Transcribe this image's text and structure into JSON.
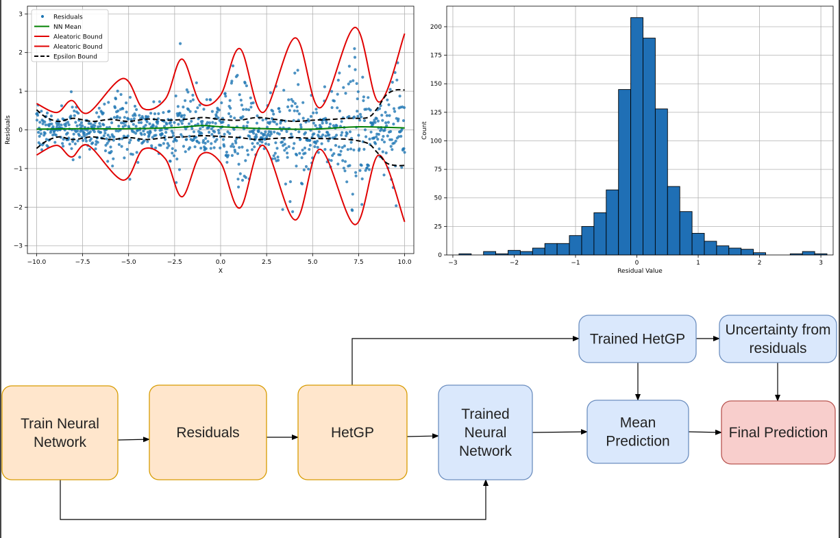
{
  "chart_data": [
    {
      "type": "scatter",
      "xlabel": "X",
      "ylabel": "Residuals",
      "xlim": [
        -10.5,
        10.5
      ],
      "ylim": [
        -3.2,
        3.2
      ],
      "xticks": [
        -10.0,
        -7.5,
        -5.0,
        -2.5,
        0.0,
        2.5,
        5.0,
        7.5,
        10.0
      ],
      "yticks": [
        -3,
        -2,
        -1,
        0,
        1,
        2,
        3
      ],
      "grid": true,
      "legend_position": "top-left",
      "series": [
        {
          "name": "Residuals",
          "kind": "points",
          "color": "#1f77b4",
          "n_points": 1000,
          "x_range": [
            -10,
            10
          ]
        },
        {
          "name": "NN Mean",
          "kind": "line",
          "color": "#008000",
          "x": [
            -10,
            -7.5,
            -5,
            -2.5,
            -1,
            0,
            2.5,
            5,
            7.5,
            10
          ],
          "y": [
            0.02,
            0.03,
            0.03,
            0.06,
            0.11,
            0.08,
            0.03,
            0.02,
            0.08,
            0.05
          ]
        },
        {
          "name": "Aleatoric Bound",
          "kind": "line",
          "color": "#e00000",
          "x": [
            -10.0,
            -8.9,
            -8.1,
            -7.2,
            -5.3,
            -4.2,
            -3.0,
            -2.1,
            -1.1,
            0.0,
            1.05,
            2.3,
            4.05,
            5.4,
            7.3,
            8.6,
            10.0
          ],
          "y": [
            0.68,
            0.45,
            0.76,
            0.44,
            1.33,
            0.55,
            0.8,
            1.83,
            0.7,
            0.9,
            2.1,
            0.45,
            2.38,
            0.57,
            2.65,
            0.72,
            2.49
          ]
        },
        {
          "name": "Aleatoric Bound",
          "kind": "line",
          "color": "#e00000",
          "x": [
            -10.0,
            -8.9,
            -8.1,
            -7.2,
            -5.3,
            -4.2,
            -3.0,
            -2.1,
            -1.1,
            0.0,
            1.05,
            2.3,
            4.05,
            5.4,
            7.3,
            8.6,
            10.0
          ],
          "y": [
            -0.65,
            -0.4,
            -0.7,
            -0.4,
            -1.3,
            -0.5,
            -0.75,
            -1.73,
            -0.65,
            -0.85,
            -2.02,
            -0.4,
            -2.33,
            -0.5,
            -2.45,
            -0.65,
            -2.38
          ]
        },
        {
          "name": "Epsilon Bound",
          "kind": "dashed",
          "color": "#000000",
          "x": [
            -10,
            -9.5,
            -8.8,
            -8,
            -7,
            -6,
            -5,
            -4,
            -3,
            -2,
            -1,
            0,
            1,
            2,
            3,
            4,
            5,
            6,
            7,
            8,
            8.5,
            9,
            9.5,
            10
          ],
          "y": [
            0.52,
            0.33,
            0.22,
            0.3,
            0.22,
            0.27,
            0.22,
            0.28,
            0.25,
            0.27,
            0.32,
            0.27,
            0.25,
            0.32,
            0.27,
            0.22,
            0.25,
            0.27,
            0.3,
            0.32,
            0.55,
            0.9,
            1.03,
            1.03
          ]
        },
        {
          "name": "",
          "kind": "dashed",
          "color": "#000000",
          "x": [
            -10,
            -9.5,
            -8.8,
            -8,
            -7,
            -6,
            -5,
            -4,
            -3,
            -2,
            -1,
            0,
            1,
            2,
            3,
            4,
            5,
            6,
            7,
            8,
            8.5,
            9,
            9.5,
            10
          ],
          "y": [
            -0.48,
            -0.3,
            -0.18,
            -0.25,
            -0.18,
            -0.25,
            -0.2,
            -0.25,
            -0.2,
            -0.18,
            -0.15,
            -0.17,
            -0.2,
            -0.25,
            -0.22,
            -0.2,
            -0.22,
            -0.23,
            -0.25,
            -0.35,
            -0.58,
            -0.85,
            -0.92,
            -0.92
          ]
        }
      ]
    },
    {
      "type": "bar",
      "kind": "histogram",
      "xlabel": "Residual Value",
      "ylabel": "Count",
      "xlim": [
        -3.1,
        3.2
      ],
      "ylim": [
        0,
        218
      ],
      "xticks": [
        -3,
        -2,
        -1,
        0,
        1,
        2,
        3
      ],
      "yticks": [
        0,
        25,
        50,
        75,
        100,
        125,
        150,
        175,
        200
      ],
      "grid": true,
      "color": "#1f6fb5",
      "bin_width": 0.2,
      "bin_starts": [
        -2.9,
        -2.7,
        -2.5,
        -2.3,
        -2.1,
        -1.9,
        -1.7,
        -1.5,
        -1.3,
        -1.1,
        -0.9,
        -0.7,
        -0.5,
        -0.3,
        -0.1,
        0.1,
        0.3,
        0.5,
        0.7,
        0.9,
        1.1,
        1.3,
        1.5,
        1.7,
        1.9,
        2.1,
        2.3,
        2.5,
        2.7,
        2.9
      ],
      "values": [
        1,
        0,
        3,
        1,
        4,
        3,
        6,
        10,
        10,
        17,
        25,
        37,
        57,
        145,
        208,
        190,
        128,
        60,
        38,
        19,
        12,
        8,
        6,
        5,
        2,
        0,
        0,
        1,
        3,
        1
      ]
    }
  ],
  "diagram": {
    "nodes": [
      {
        "id": "train",
        "label_lines": [
          "Train Neural",
          "Network"
        ],
        "fill": "#ffe6cc",
        "stroke": "#d79b00"
      },
      {
        "id": "residuals",
        "label_lines": [
          "Residuals"
        ],
        "fill": "#ffe6cc",
        "stroke": "#d79b00"
      },
      {
        "id": "hetgp",
        "label_lines": [
          "HetGP"
        ],
        "fill": "#ffe6cc",
        "stroke": "#d79b00"
      },
      {
        "id": "trained_nn",
        "label_lines": [
          "Trained",
          "Neural",
          "Network"
        ],
        "fill": "#dae8fc",
        "stroke": "#6c8ebf"
      },
      {
        "id": "trained_hetgp",
        "label_lines": [
          "Trained HetGP"
        ],
        "fill": "#dae8fc",
        "stroke": "#6c8ebf"
      },
      {
        "id": "uncertainty",
        "label_lines": [
          "Uncertainty from",
          "residuals"
        ],
        "fill": "#dae8fc",
        "stroke": "#6c8ebf"
      },
      {
        "id": "mean_pred",
        "label_lines": [
          "Mean",
          "Prediction"
        ],
        "fill": "#dae8fc",
        "stroke": "#6c8ebf"
      },
      {
        "id": "final",
        "label_lines": [
          "Final Prediction"
        ],
        "fill": "#f8cecc",
        "stroke": "#b85450"
      }
    ],
    "edges": [
      {
        "from": "train",
        "to": "residuals"
      },
      {
        "from": "residuals",
        "to": "hetgp"
      },
      {
        "from": "hetgp",
        "to": "trained_nn"
      },
      {
        "from": "hetgp",
        "to": "trained_hetgp"
      },
      {
        "from": "train",
        "to": "trained_nn"
      },
      {
        "from": "trained_nn",
        "to": "mean_pred"
      },
      {
        "from": "trained_hetgp",
        "to": "uncertainty"
      },
      {
        "from": "trained_hetgp",
        "to": "mean_pred"
      },
      {
        "from": "mean_pred",
        "to": "final"
      },
      {
        "from": "uncertainty",
        "to": "final"
      }
    ]
  }
}
